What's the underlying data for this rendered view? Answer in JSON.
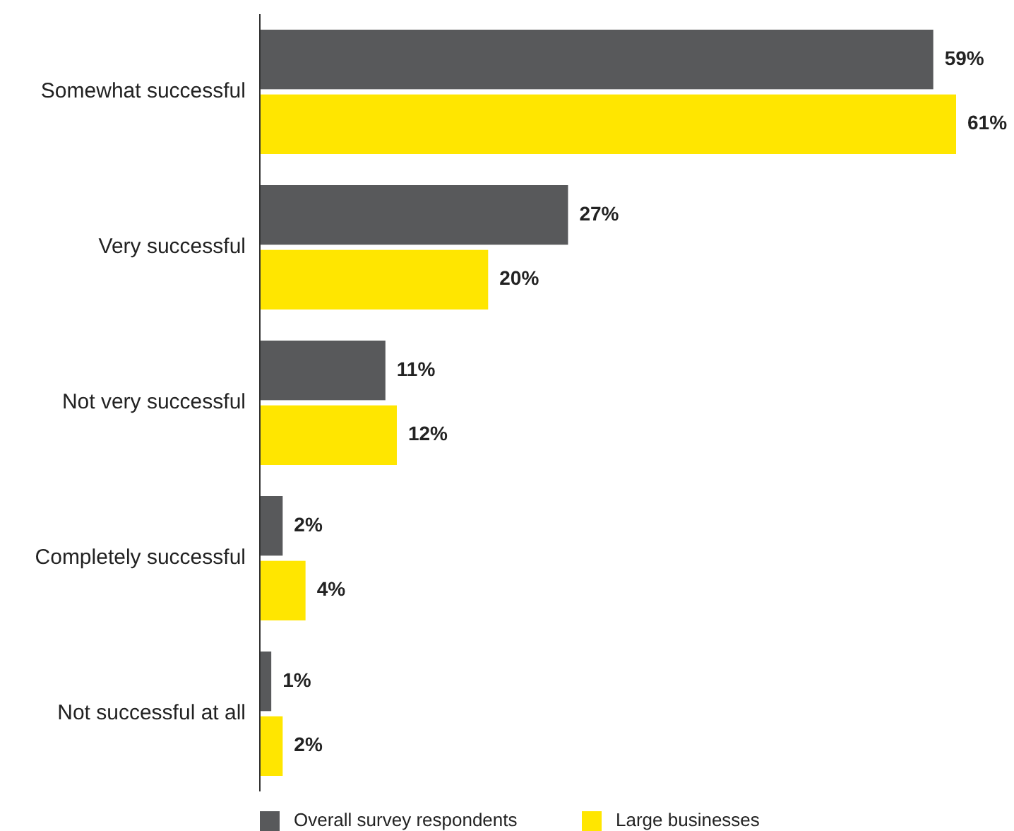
{
  "chart_data": {
    "type": "bar",
    "orientation": "horizontal",
    "categories": [
      "Somewhat successful",
      "Very successful",
      "Not very successful",
      "Completely successful",
      "Not successful at all"
    ],
    "series": [
      {
        "name": "Overall survey respondents",
        "color": "#58595b",
        "values": [
          59,
          27,
          11,
          2,
          1
        ],
        "value_labels": [
          "59%",
          "27%",
          "11%",
          "2%",
          "1%"
        ]
      },
      {
        "name": "Large businesses",
        "color": "#ffe600",
        "values": [
          61,
          20,
          12,
          4,
          2
        ],
        "value_labels": [
          "61%",
          "20%",
          "12%",
          "4%",
          "2%"
        ]
      }
    ],
    "legend": "bottom"
  }
}
